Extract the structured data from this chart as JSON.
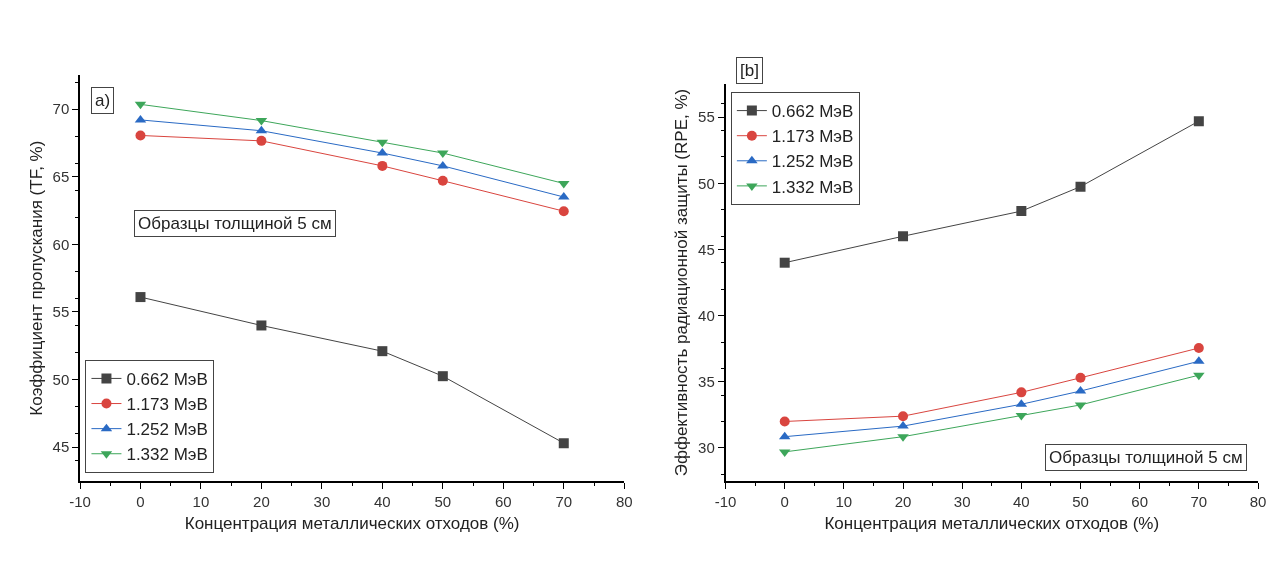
{
  "chart_data": [
    {
      "type": "line",
      "xlabel": "Концентрация металлических отходов (%)",
      "ylabel": "Коэффициент пропускания (TF, %)",
      "annotations": [
        "a)",
        "Образцы толщиной 5 см"
      ],
      "x": [
        0,
        20,
        40,
        50,
        70
      ],
      "xlim": [
        -10,
        80
      ],
      "xticks": [
        -10,
        0,
        10,
        20,
        30,
        40,
        50,
        60,
        70,
        80
      ],
      "ylim": [
        42.5,
        72.5
      ],
      "yticks": [
        45,
        50,
        55,
        60,
        65,
        70
      ],
      "legend": "bottom left",
      "line_style": "solid",
      "series": [
        {
          "name": "0.662 MэВ",
          "color": "#444444",
          "marker": "square",
          "values": [
            56.1,
            54.0,
            52.1,
            50.25,
            45.3
          ]
        },
        {
          "name": "1.173 MэВ",
          "color": "#d9453f",
          "marker": "circle",
          "values": [
            68.05,
            67.65,
            65.8,
            64.7,
            62.45
          ]
        },
        {
          "name": "1.252 MэВ",
          "color": "#2a6ac4",
          "marker": "triangle",
          "values": [
            69.2,
            68.4,
            66.75,
            65.8,
            63.5
          ]
        },
        {
          "name": "1.332 MэВ",
          "color": "#3da65a",
          "marker": "triangle-down",
          "values": [
            70.35,
            69.15,
            67.55,
            66.75,
            64.5
          ]
        }
      ]
    },
    {
      "type": "line",
      "xlabel": "Концентрация металлических отходов (%)",
      "ylabel": "Эффективность радиационной защиты (RPE, %)",
      "annotations": [
        "[b]",
        "Образцы толщиной 5 см"
      ],
      "x": [
        0,
        20,
        40,
        50,
        70
      ],
      "xlim": [
        -10,
        80
      ],
      "xticks": [
        -10,
        0,
        10,
        20,
        30,
        40,
        50,
        60,
        70,
        80
      ],
      "ylim": [
        27.5,
        57.5
      ],
      "yticks": [
        30,
        35,
        40,
        45,
        50,
        55
      ],
      "legend": "top left",
      "line_style": "solid",
      "series": [
        {
          "name": "0.662 MэВ",
          "color": "#444444",
          "marker": "square",
          "values": [
            44.0,
            46.0,
            47.9,
            49.75,
            54.7
          ]
        },
        {
          "name": "1.173 MэВ",
          "color": "#d9453f",
          "marker": "circle",
          "values": [
            32.0,
            32.4,
            34.2,
            35.3,
            37.55
          ]
        },
        {
          "name": "1.252 MэВ",
          "color": "#2a6ac4",
          "marker": "triangle",
          "values": [
            30.85,
            31.65,
            33.3,
            34.3,
            36.55
          ]
        },
        {
          "name": "1.332 MэВ",
          "color": "#3da65a",
          "marker": "triangle-down",
          "values": [
            29.7,
            30.85,
            32.45,
            33.25,
            35.5
          ]
        }
      ]
    }
  ]
}
